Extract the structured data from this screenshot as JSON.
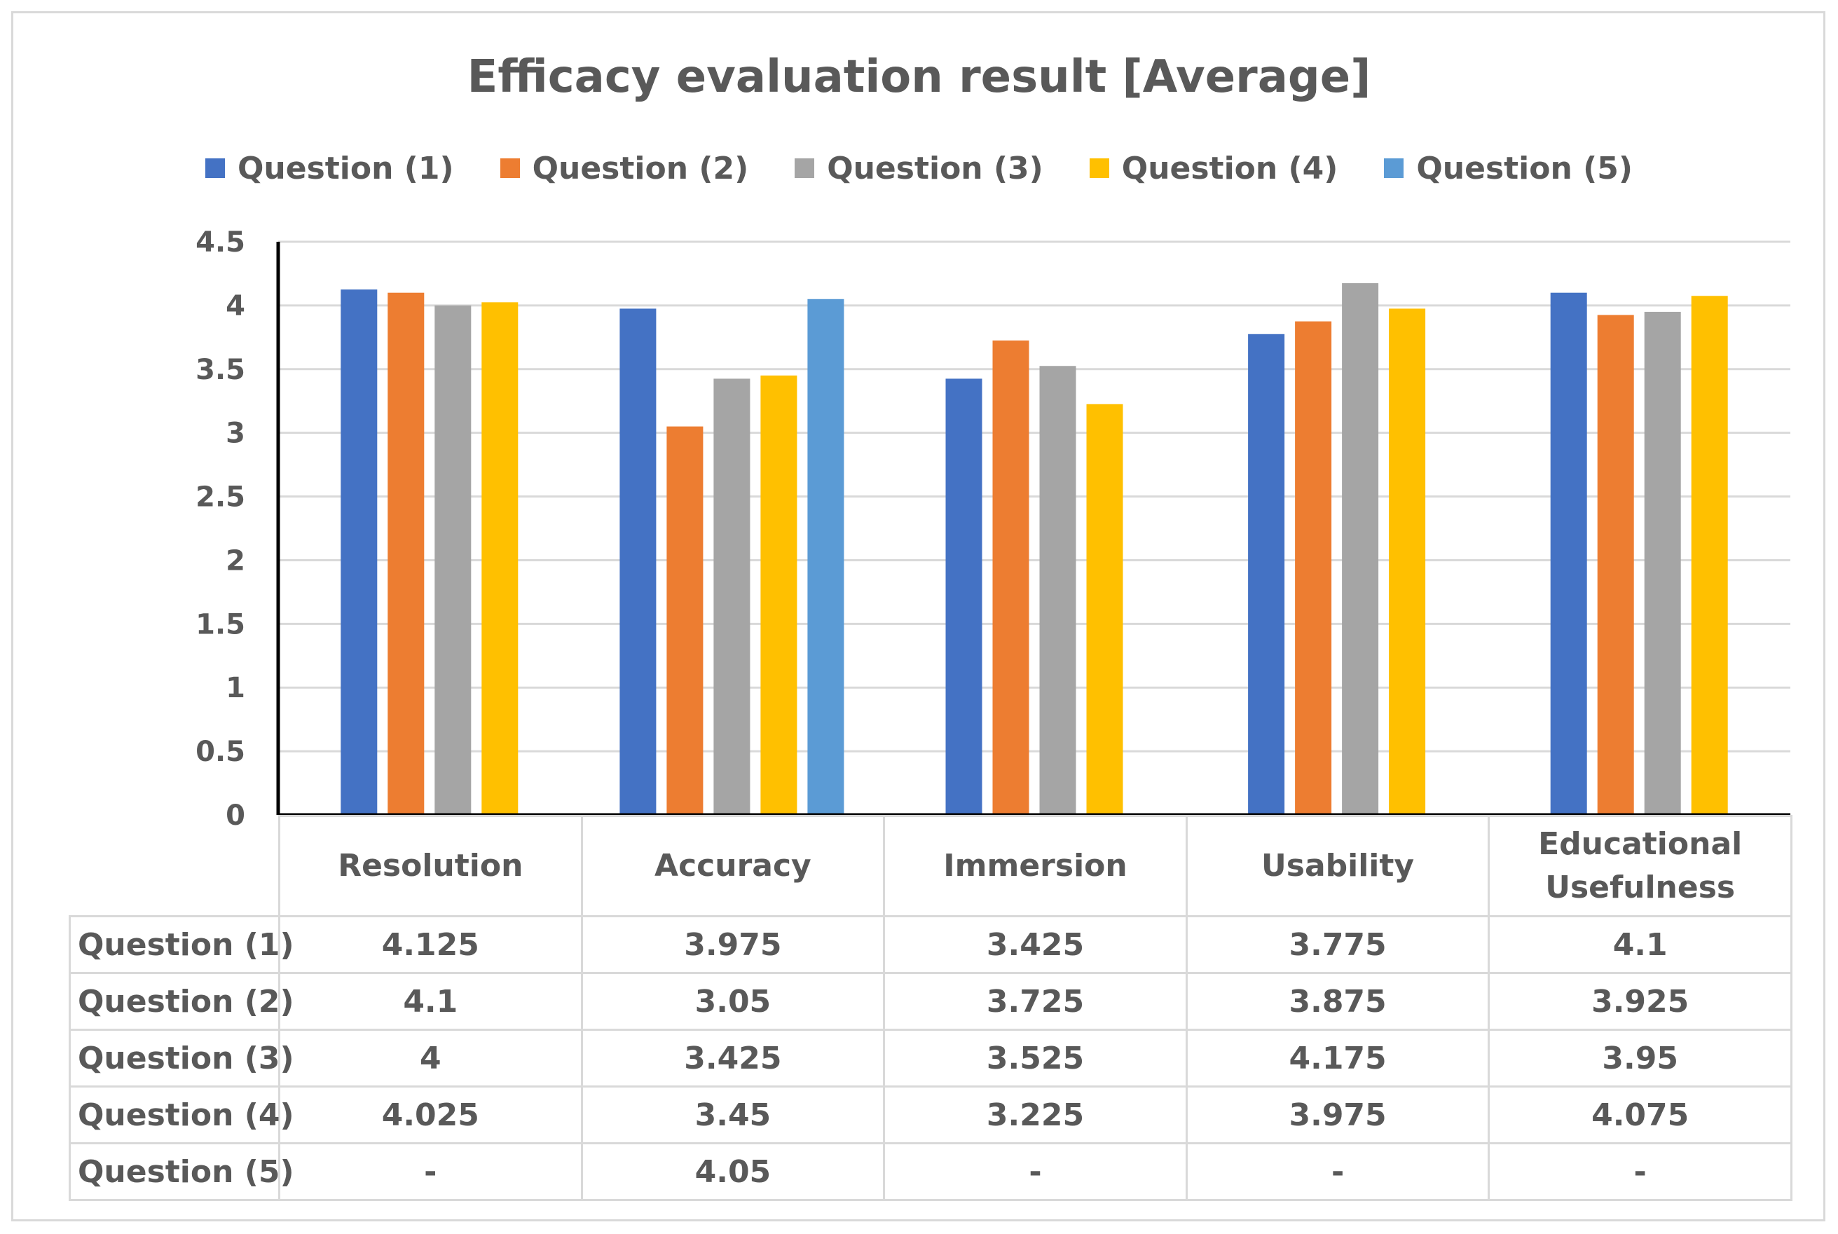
{
  "chart_data": {
    "type": "bar",
    "title": "Efficacy evaluation result [Average]",
    "categories": [
      "Resolution",
      "Accuracy",
      "Immersion",
      "Usability",
      "Educational Usefulness"
    ],
    "category_lines": [
      [
        "Resolution"
      ],
      [
        "Accuracy"
      ],
      [
        "Immersion"
      ],
      [
        "Usability"
      ],
      [
        "Educational",
        "Usefulness"
      ]
    ],
    "series": [
      {
        "name": "Question (1)",
        "color": "#4472c4",
        "values": [
          4.125,
          3.975,
          3.425,
          3.775,
          4.1
        ],
        "display": [
          "4.125",
          "3.975",
          "3.425",
          "3.775",
          "4.1"
        ]
      },
      {
        "name": "Question (2)",
        "color": "#ed7d31",
        "values": [
          4.1,
          3.05,
          3.725,
          3.875,
          3.925
        ],
        "display": [
          "4.1",
          "3.05",
          "3.725",
          "3.875",
          "3.925"
        ]
      },
      {
        "name": "Question (3)",
        "color": "#a5a5a5",
        "values": [
          4,
          3.425,
          3.525,
          4.175,
          3.95
        ],
        "display": [
          "4",
          "3.425",
          "3.525",
          "4.175",
          "3.95"
        ]
      },
      {
        "name": "Question (4)",
        "color": "#ffc000",
        "values": [
          4.025,
          3.45,
          3.225,
          3.975,
          4.075
        ],
        "display": [
          "4.025",
          "3.45",
          "3.225",
          "3.975",
          "4.075"
        ]
      },
      {
        "name": "Question (5)",
        "color": "#5b9bd5",
        "values": [
          null,
          4.05,
          null,
          null,
          null
        ],
        "display": [
          "-",
          "4.05",
          "-",
          "-",
          "-"
        ]
      }
    ],
    "yticks": [
      "0",
      "0.5",
      "1",
      "1.5",
      "2",
      "2.5",
      "3",
      "3.5",
      "4",
      "4.5"
    ],
    "ylim": [
      0,
      4.5
    ],
    "grid": true,
    "legend": "top-center",
    "xlabel": "",
    "ylabel": ""
  }
}
